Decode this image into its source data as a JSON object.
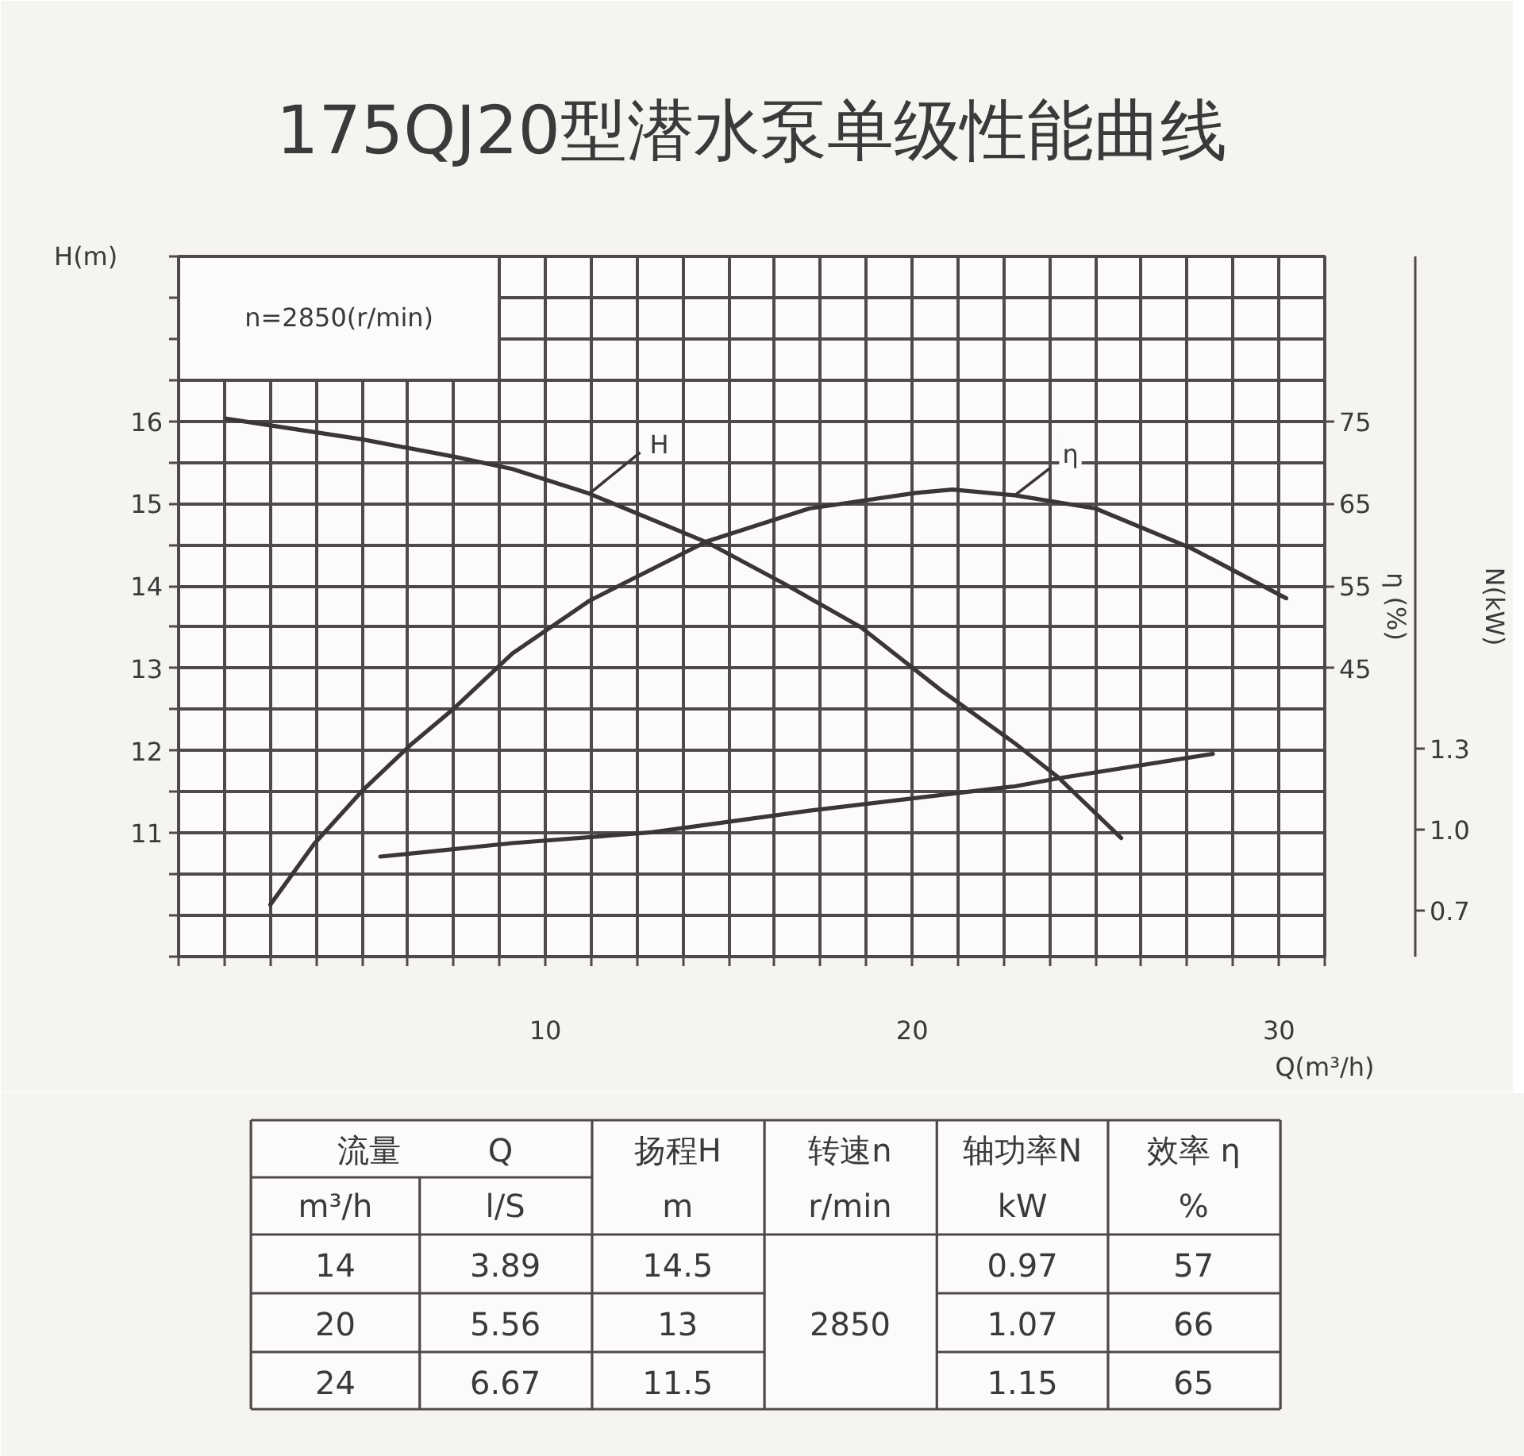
{
  "chart_data": {
    "type": "line",
    "title": "175QJ20型潜水泵单级性能曲线",
    "xlabel": "Q(m³/h)",
    "ylabel": "H(m)",
    "y2label": "η (%)",
    "y3label": "N(kW)",
    "xlim": [
      0,
      31.25
    ],
    "xticks": [
      {
        "value": 0,
        "label": null
      },
      {
        "value": 1.25,
        "label": null
      },
      {
        "value": 2.5,
        "label": null
      },
      {
        "value": 3.75,
        "label": null
      },
      {
        "value": 5,
        "label": null
      },
      {
        "value": 6.25,
        "label": null
      },
      {
        "value": 7.5,
        "label": null
      },
      {
        "value": 8.75,
        "label": null
      },
      10,
      {
        "value": 11.25,
        "label": null
      },
      {
        "value": 12.5,
        "label": null
      },
      {
        "value": 13.75,
        "label": null
      },
      {
        "value": 15,
        "label": null
      },
      {
        "value": 16.25,
        "label": null
      },
      {
        "value": 17.5,
        "label": null
      },
      {
        "value": 18.75,
        "label": null
      },
      20,
      {
        "value": 21.25,
        "label": null
      },
      {
        "value": 22.5,
        "label": null
      },
      {
        "value": 23.75,
        "label": null
      },
      {
        "value": 25,
        "label": null
      },
      {
        "value": 26.25,
        "label": null
      },
      {
        "value": 27.5,
        "label": null
      },
      {
        "value": 28.75,
        "label": null
      },
      30,
      {
        "value": 31.25,
        "label": null
      }
    ],
    "ylim": [
      9.5,
      18
    ],
    "yticks": [
      {
        "value": 9.5,
        "label": null
      },
      {
        "value": 10,
        "label": null
      },
      {
        "value": 10.5,
        "label": null
      },
      11,
      {
        "value": 11.5,
        "label": null
      },
      12,
      {
        "value": 12.5,
        "label": null
      },
      13,
      {
        "value": 13.5,
        "label": null
      },
      14,
      {
        "value": 14.5,
        "label": null
      },
      15,
      {
        "value": 15.5,
        "label": null
      },
      16,
      {
        "value": 16.5,
        "label": null
      },
      {
        "value": 17,
        "label": null
      },
      {
        "value": 17.5,
        "label": null
      },
      {
        "value": 18,
        "label": null
      }
    ],
    "y2lim": [
      10,
      95
    ],
    "y2ticks": [
      45,
      55,
      65,
      75
    ],
    "y3lim": [
      0.53,
      3.12
    ],
    "y3ticks": [
      0.7,
      {
        "value": 1,
        "label": "1.0"
      },
      1.3
    ],
    "grid": true,
    "series": [
      {
        "name": "H",
        "color": "#3b3536",
        "x": [
          1.3,
          5.0,
          7.5,
          9.1,
          11.2,
          14.4,
          16.5,
          18.6,
          20.8,
          22.8,
          24.0,
          25.7
        ],
        "values": [
          16.03,
          15.78,
          15.57,
          15.42,
          15.12,
          14.53,
          14.03,
          13.5,
          12.73,
          12.09,
          11.67,
          10.94
        ]
      },
      {
        "name": "η",
        "color": "#3b3536",
        "axis": "y2",
        "x": [
          2.5,
          3.7,
          5.0,
          6.3,
          7.5,
          9.1,
          11.2,
          14.4,
          17.2,
          20.1,
          21.1,
          22.8,
          25.0,
          27.6,
          30.2
        ],
        "values": [
          16.3,
          23.7,
          30.1,
          35.6,
          40.1,
          46.8,
          53.2,
          60.4,
          64.4,
          66.3,
          66.7,
          66.0,
          64.4,
          59.6,
          53.5
        ]
      },
      {
        "color": "#3b3536",
        "axis": "y3",
        "x": [
          5.5,
          9.1,
          12.9,
          17.2,
          22.8,
          24.0,
          28.2
        ],
        "values": [
          0.9,
          0.95,
          0.99,
          1.07,
          1.16,
          1.19,
          1.28
        ]
      }
    ],
    "annotations": [
      "n=2850(r/min)",
      "流量",
      "Q",
      "扬程H",
      "转速n",
      "轴功率N",
      "效率 η",
      "m³/h",
      "l/S",
      "m",
      "r/min",
      "kW",
      "%",
      "14",
      "3.89",
      "14.5",
      "2850",
      "0.97",
      "57",
      "20",
      "5.56",
      "13",
      "1.07",
      "66",
      "24",
      "6.67",
      "11.5",
      "1.15",
      "65"
    ]
  }
}
